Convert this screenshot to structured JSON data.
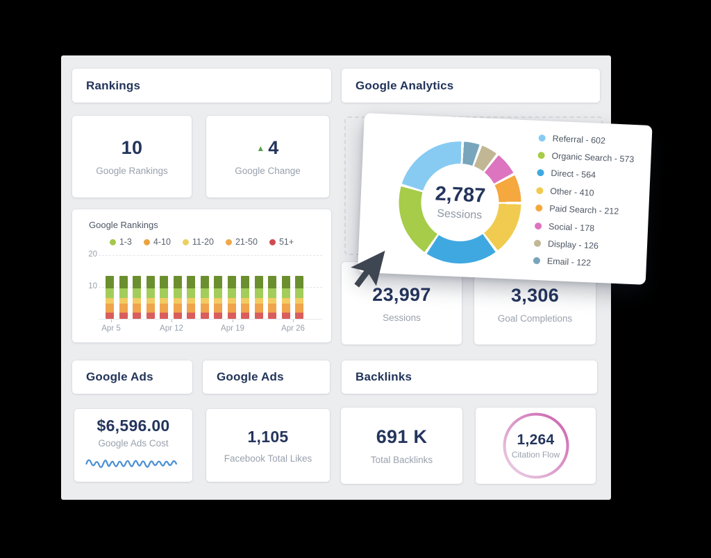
{
  "colors": {
    "background": "#000000",
    "panel": "#ecedef",
    "card": "#ffffff",
    "heading_navy": "#22345a",
    "value_navy": "#24355c",
    "label_gray": "#99a1ad",
    "dashed_border": "#d7dade",
    "sparkline_blue": "#4a8fd4",
    "ring_pink_dark": "#ca5fad",
    "ring_pink_light": "#ecd4e6",
    "cursor_dark": "#3e4651",
    "change_up_green": "#59a14f"
  },
  "rankings": {
    "header": "Rankings",
    "google_rankings": {
      "value": "10",
      "label": "Google Rankings"
    },
    "google_change": {
      "up_glyph": "▲",
      "value": "4",
      "label": "Google Change"
    },
    "chart_title": "Google Rankings"
  },
  "analytics": {
    "header": "Google Analytics",
    "sessions": {
      "value": "23,997",
      "label": "Sessions"
    },
    "goal_completions": {
      "value": "3,306",
      "label": "Goal Completions"
    }
  },
  "google_ads": {
    "header_left": "Google Ads",
    "header_right": "Google Ads",
    "cost": {
      "value": "$6,596.00",
      "label": "Google Ads Cost"
    },
    "facebook_likes": {
      "value": "1,105",
      "label": "Facebook Total Likes"
    }
  },
  "backlinks": {
    "header": "Backlinks",
    "total": {
      "value": "691 K",
      "label": "Total Backlinks"
    },
    "citation_flow": {
      "value": "1,264",
      "label": "Citation Flow"
    }
  },
  "chart_data": [
    {
      "id": "sessions-donut",
      "type": "pie",
      "subtype": "donut",
      "center_value": "2,787",
      "center_label": "Sessions",
      "total": 2787,
      "segments": [
        {
          "name": "Referral",
          "value": 602,
          "color": "#87cbf3"
        },
        {
          "name": "Organic Search",
          "value": 573,
          "color": "#a6cc49"
        },
        {
          "name": "Direct",
          "value": 564,
          "color": "#3fa8e1"
        },
        {
          "name": "Other",
          "value": 410,
          "color": "#f0cb4f"
        },
        {
          "name": "Paid Search",
          "value": 212,
          "color": "#f4a83d"
        },
        {
          "name": "Social",
          "value": 178,
          "color": "#dd74c0"
        },
        {
          "name": "Display",
          "value": 126,
          "color": "#c2b794"
        },
        {
          "name": "Email",
          "value": 122,
          "color": "#78a5bc"
        }
      ],
      "clockwise_from_top_order": [
        "Email",
        "Display",
        "Social",
        "Paid Search",
        "Other",
        "Direct",
        "Organic Search",
        "Referral"
      ],
      "legend_position": "right",
      "legend_format": "{name} - {value}"
    },
    {
      "id": "google-rankings-bars",
      "type": "bar",
      "stacked": true,
      "title": "Google Rankings",
      "num_bars": 15,
      "x_tick_labels": [
        "Apr 5",
        "Apr 12",
        "Apr 19",
        "Apr 26"
      ],
      "y_ticks": [
        "10",
        "20"
      ],
      "ylim": [
        0,
        20
      ],
      "bar_total": 13.4,
      "series_bottom_to_top": [
        {
          "name": "51+",
          "color": "#d95d5d",
          "value_per_bar": 1.9
        },
        {
          "name": "21-50",
          "color": "#f0a44c",
          "value_per_bar": 2.9
        },
        {
          "name": "11-20",
          "color": "#f3cb63",
          "value_per_bar": 1.7
        },
        {
          "name": "4-10",
          "color": "#a3cd5a",
          "value_per_bar": 3.1
        },
        {
          "name": "1-3",
          "color": "#6b8f2e",
          "value_per_bar": 3.8
        }
      ],
      "legend": [
        {
          "label": "1-3",
          "color": "#a3c64c"
        },
        {
          "label": "4-10",
          "color": "#eaa43e"
        },
        {
          "label": "11-20",
          "color": "#ecd05f"
        },
        {
          "label": "21-50",
          "color": "#efa84a"
        },
        {
          "label": "51+",
          "color": "#ce4b50"
        }
      ],
      "grid": "dashed horizontal at 10 and 20"
    },
    {
      "id": "ads-cost-sparkline",
      "type": "line",
      "label": "Google Ads Cost trend (decorative sparkline, no axis values shown)",
      "color": "#4a8fd4"
    }
  ]
}
